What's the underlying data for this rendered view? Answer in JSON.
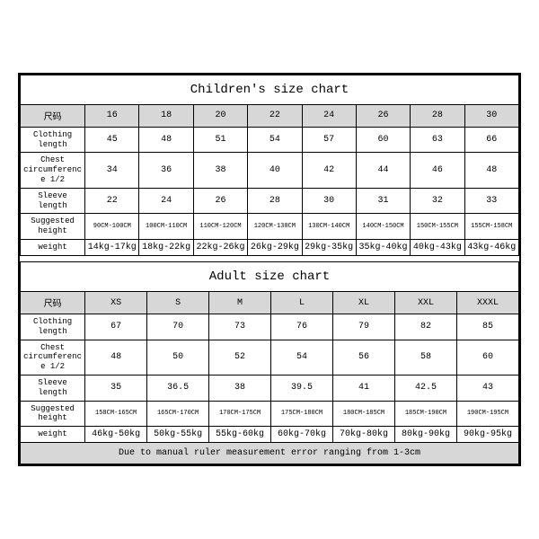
{
  "children_table": {
    "title": "Children's size chart",
    "row_label_header": "尺码",
    "sizes": [
      "16",
      "18",
      "20",
      "22",
      "24",
      "26",
      "28",
      "30"
    ],
    "rows": [
      {
        "label": "Clothing length",
        "values": [
          "45",
          "48",
          "51",
          "54",
          "57",
          "60",
          "63",
          "66"
        ],
        "small": false
      },
      {
        "label": "Chest circumference 1/2",
        "values": [
          "34",
          "36",
          "38",
          "40",
          "42",
          "44",
          "46",
          "48"
        ],
        "small": false
      },
      {
        "label": "Sleeve length",
        "values": [
          "22",
          "24",
          "26",
          "28",
          "30",
          "31",
          "32",
          "33"
        ],
        "small": false
      },
      {
        "label": "Suggested height",
        "values": [
          "90CM-100CM",
          "100CM-110CM",
          "110CM-120CM",
          "120CM-130CM",
          "130CM-140CM",
          "140CM-150CM",
          "150CM-155CM",
          "155CM-158CM"
        ],
        "small": true
      },
      {
        "label": "weight",
        "values": [
          "14kg-17kg",
          "18kg-22kg",
          "22kg-26kg",
          "26kg-29kg",
          "29kg-35kg",
          "35kg-40kg",
          "40kg-43kg",
          "43kg-46kg"
        ],
        "small": false
      }
    ]
  },
  "adult_table": {
    "title": "Adult size chart",
    "row_label_header": "尺码",
    "sizes": [
      "XS",
      "S",
      "M",
      "L",
      "XL",
      "XXL",
      "XXXL"
    ],
    "rows": [
      {
        "label": "Clothing length",
        "values": [
          "67",
          "70",
          "73",
          "76",
          "79",
          "82",
          "85"
        ],
        "small": false
      },
      {
        "label": "Chest circumference 1/2",
        "values": [
          "48",
          "50",
          "52",
          "54",
          "56",
          "58",
          "60"
        ],
        "small": false
      },
      {
        "label": "Sleeve length",
        "values": [
          "35",
          "36.5",
          "38",
          "39.5",
          "41",
          "42.5",
          "43"
        ],
        "small": false
      },
      {
        "label": "Suggested height",
        "values": [
          "158CM-165CM",
          "165CM-170CM",
          "170CM-175CM",
          "175CM-180CM",
          "180CM-185CM",
          "185CM-190CM",
          "190CM-195CM"
        ],
        "small": true
      },
      {
        "label": "weight",
        "values": [
          "46kg-50kg",
          "50kg-55kg",
          "55kg-60kg",
          "60kg-70kg",
          "70kg-80kg",
          "80kg-90kg",
          "90kg-95kg"
        ],
        "small": false
      }
    ]
  },
  "footer_note": "Due to manual ruler measurement error ranging from 1-3cm",
  "colors": {
    "header_bg": "#d7d7d7",
    "border": "#000000",
    "background": "#ffffff"
  }
}
